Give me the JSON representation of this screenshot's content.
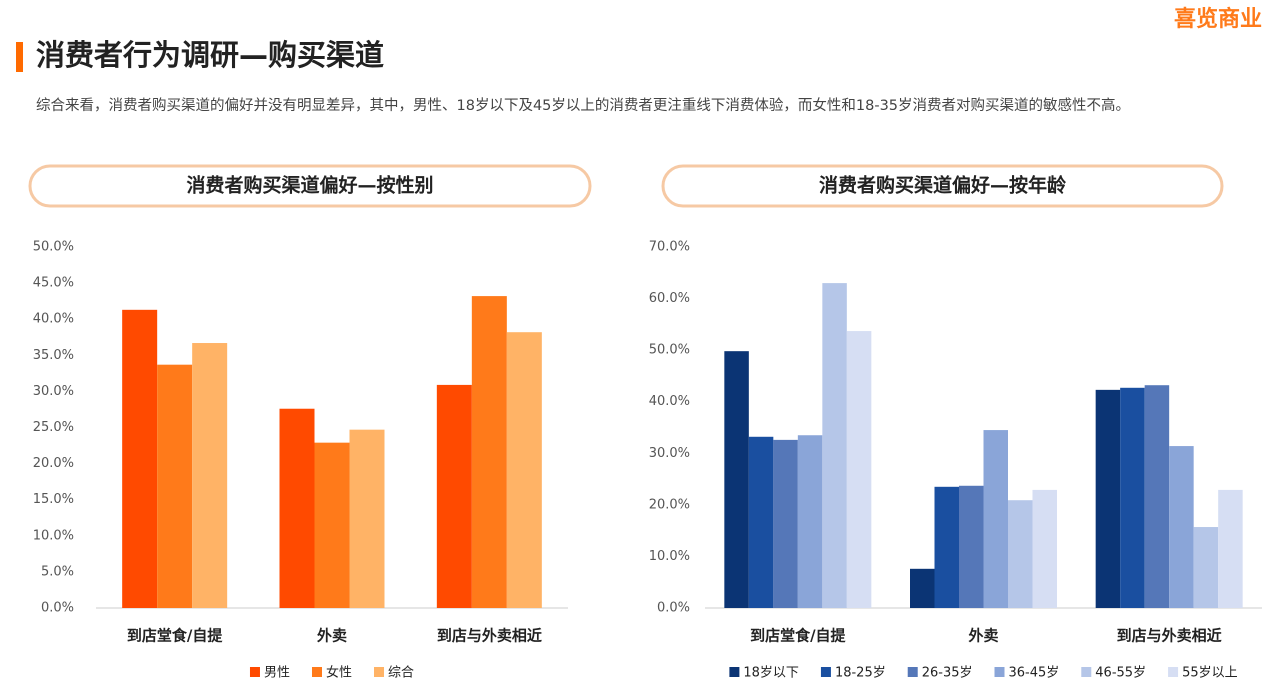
{
  "title": "消费者行为调研—购买渠道",
  "subtitle": "综合来看，消费者购买渠道的偏好并没有明显差异，其中，男性、18岁以下及45岁以上的消费者更注重线下消费体验，而女性和18-35岁消费者对购买渠道的敏感性不高。",
  "logo": "喜览商业",
  "chart_data": [
    {
      "type": "bar",
      "title": "消费者购买渠道偏好—按性别",
      "categories": [
        "到店堂食/自提",
        "外卖",
        "到店与外卖相近"
      ],
      "series": [
        {
          "name": "男性",
          "color": "#ff4a00",
          "values": [
            41.3,
            27.6,
            30.9
          ]
        },
        {
          "name": "女性",
          "color": "#ff7a1a",
          "values": [
            33.7,
            22.9,
            43.2
          ]
        },
        {
          "name": "综合",
          "color": "#ffb366",
          "values": [
            36.7,
            24.7,
            38.2
          ]
        }
      ],
      "ylim": [
        0,
        50
      ],
      "yticks": [
        {
          "value": 0,
          "label": "0.0%"
        },
        {
          "value": 5,
          "label": "5.0%"
        },
        {
          "value": 10,
          "label": "10.0%"
        },
        {
          "value": 15,
          "label": "15.0%"
        },
        {
          "value": 20,
          "label": "20.0%"
        },
        {
          "value": 25,
          "label": "25.0%"
        },
        {
          "value": 30,
          "label": "30.0%"
        },
        {
          "value": 35,
          "label": "35.0%"
        },
        {
          "value": 40,
          "label": "40.0%"
        },
        {
          "value": 45,
          "label": "45.0%"
        },
        {
          "value": 50,
          "label": "50.0%"
        }
      ]
    },
    {
      "type": "bar",
      "title": "消费者购买渠道偏好—按年龄",
      "categories": [
        "到店堂食/自提",
        "外卖",
        "到店与外卖相近"
      ],
      "series": [
        {
          "name": "18岁以下",
          "color": "#0b3474",
          "values": [
            49.8,
            7.6,
            42.3
          ]
        },
        {
          "name": "18-25岁",
          "color": "#1a4fa0",
          "values": [
            33.2,
            23.5,
            42.7
          ]
        },
        {
          "name": "26-35岁",
          "color": "#5577b8",
          "values": [
            32.6,
            23.7,
            43.2
          ]
        },
        {
          "name": "36-45岁",
          "color": "#8aa5d8",
          "values": [
            33.5,
            34.5,
            31.4
          ]
        },
        {
          "name": "46-55岁",
          "color": "#b5c6e8",
          "values": [
            63.0,
            20.9,
            15.7
          ]
        },
        {
          "name": "55岁以上",
          "color": "#d6def3",
          "values": [
            53.7,
            22.9,
            22.9
          ]
        }
      ],
      "ylim": [
        0,
        70
      ],
      "yticks": [
        {
          "value": 0,
          "label": "0.0%"
        },
        {
          "value": 10,
          "label": "10.0%"
        },
        {
          "value": 20,
          "label": "20.0%"
        },
        {
          "value": 30,
          "label": "30.0%"
        },
        {
          "value": 40,
          "label": "40.0%"
        },
        {
          "value": 50,
          "label": "50.0%"
        },
        {
          "value": 60,
          "label": "60.0%"
        },
        {
          "value": 70,
          "label": "70.0%"
        }
      ]
    }
  ]
}
